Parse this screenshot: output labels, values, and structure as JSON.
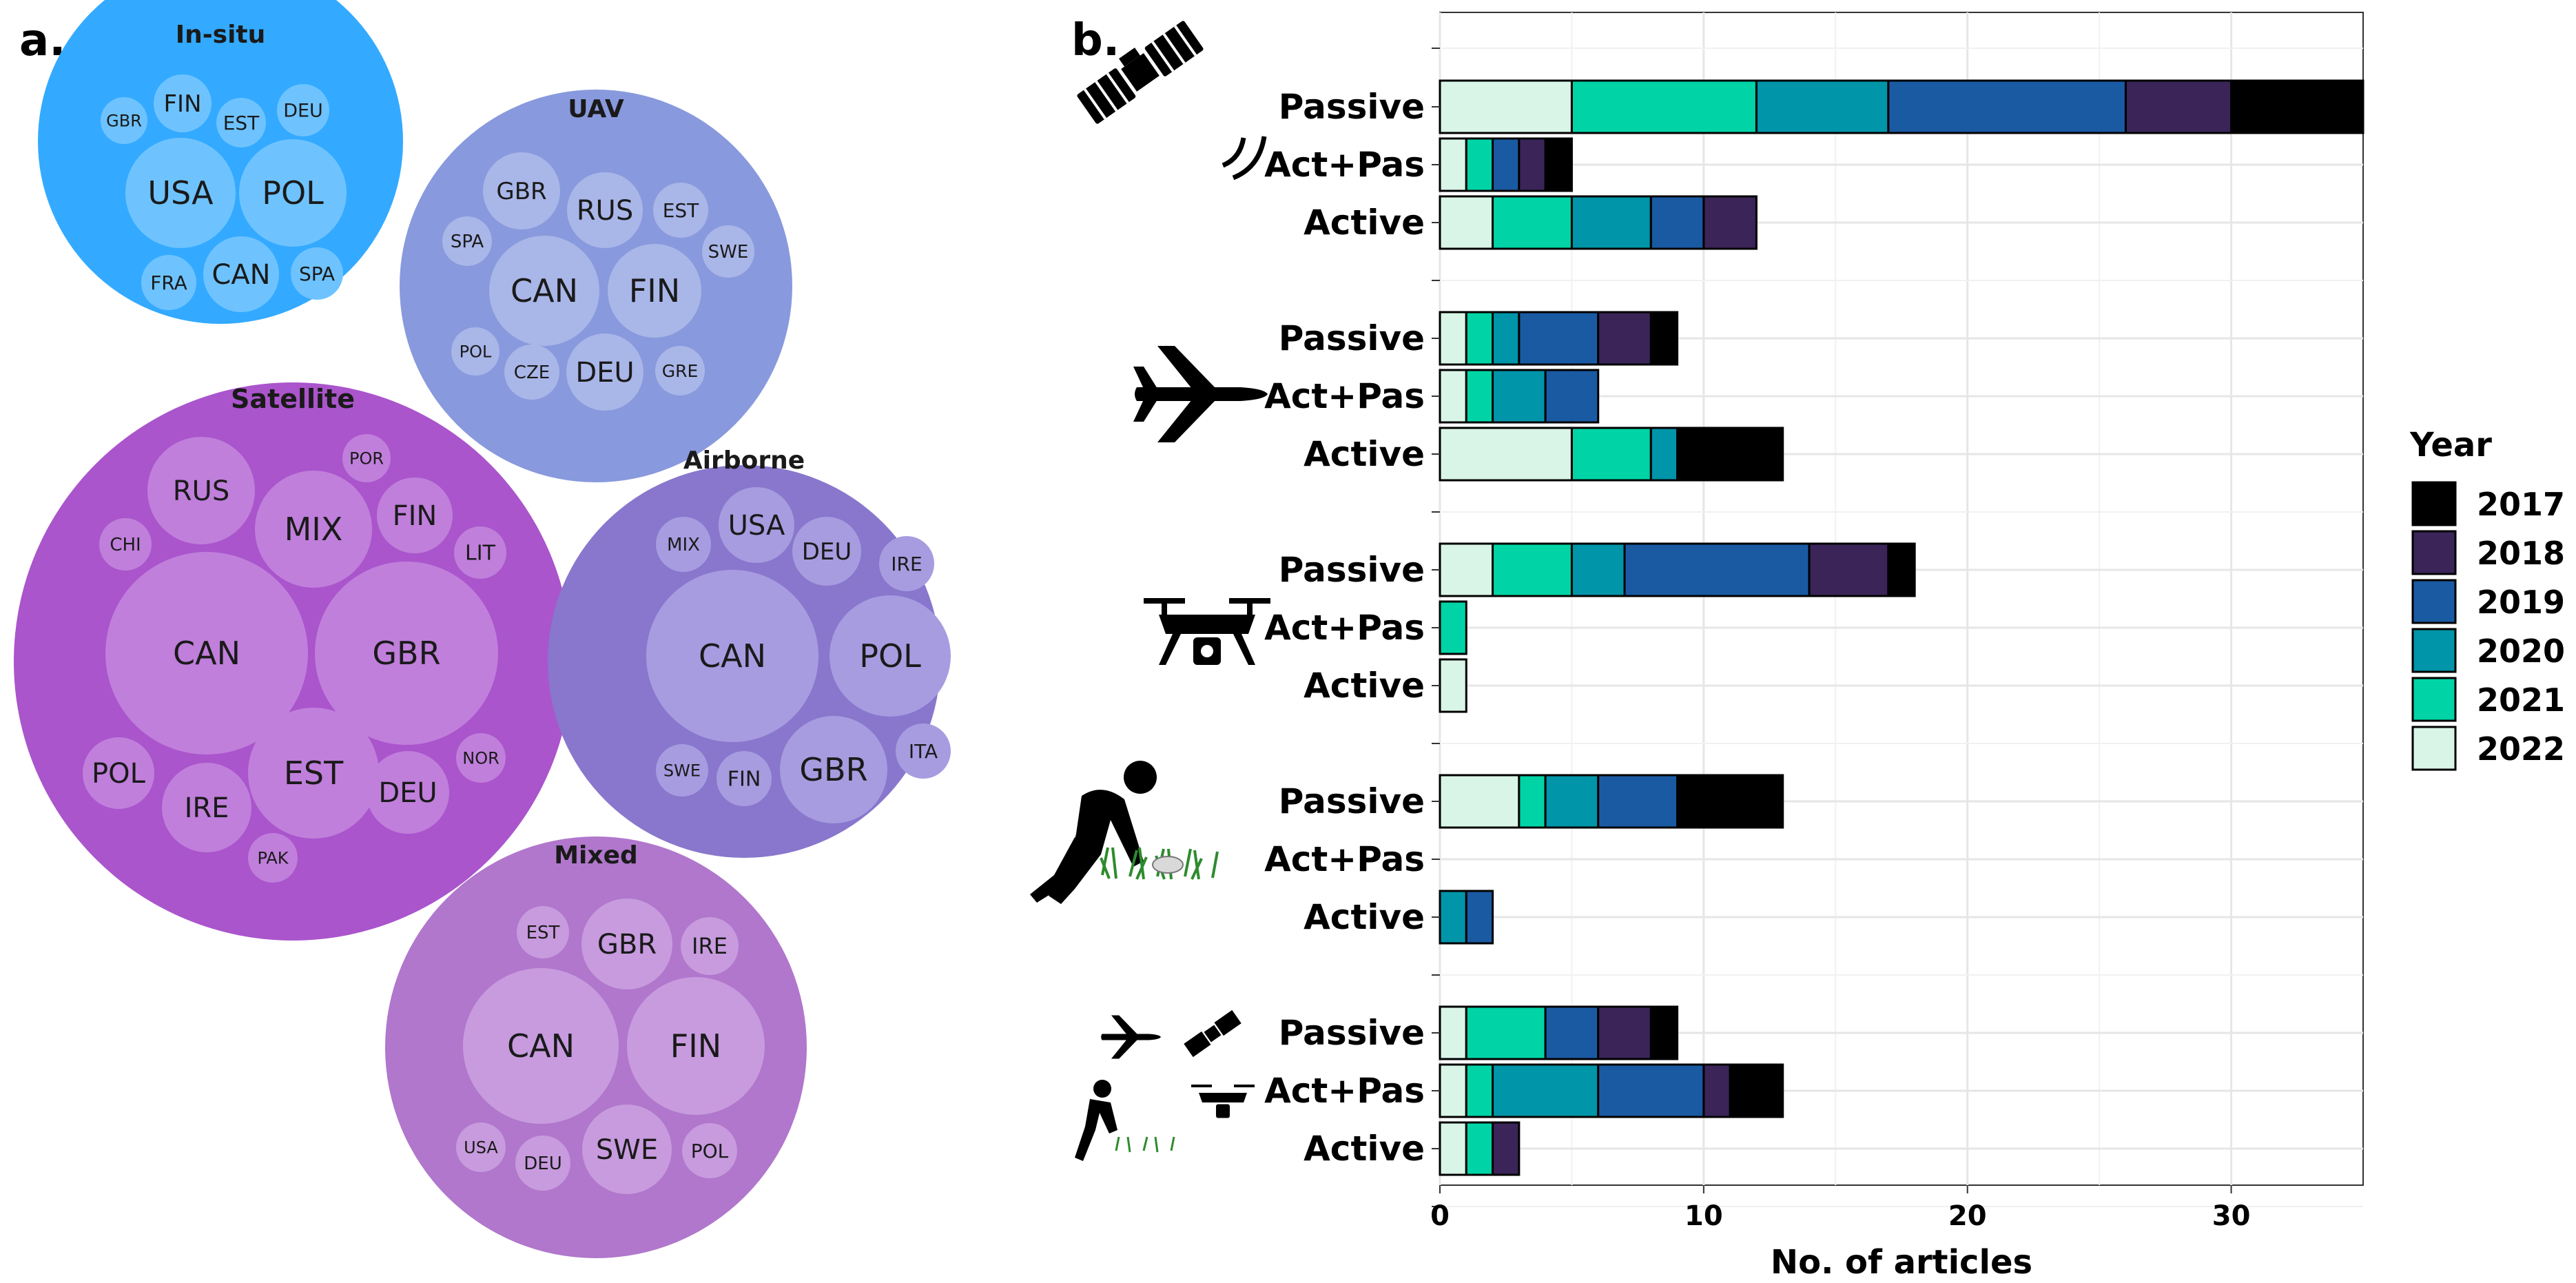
{
  "panel_a": {
    "label": "a.",
    "circles": [
      {
        "title": "In-situ",
        "color": "#33aaff",
        "bubble_color": "#6ec3ff",
        "countries": [
          "GBR",
          "FIN",
          "EST",
          "DEU",
          "USA",
          "POL",
          "FRA",
          "CAN",
          "SPA"
        ]
      },
      {
        "title": "UAV",
        "color": "#8899dd",
        "bubble_color": "#a9b6e8",
        "countries": [
          "GBR",
          "RUS",
          "EST",
          "SPA",
          "SWE",
          "CAN",
          "FIN",
          "POL",
          "CZE",
          "DEU",
          "GRE"
        ]
      },
      {
        "title": "Satellite",
        "color": "#aa55cc",
        "bubble_color": "#c07fdb",
        "countries": [
          "RUS",
          "POR",
          "MIX",
          "FIN",
          "CHI",
          "LIT",
          "CAN",
          "GBR",
          "NOR",
          "POL",
          "EST",
          "IRE",
          "DEU",
          "PAK"
        ]
      },
      {
        "title": "Airborne",
        "color": "#8877cc",
        "bubble_color": "#a79ce0",
        "countries": [
          "MIX",
          "USA",
          "DEU",
          "IRE",
          "CAN",
          "POL",
          "SWE",
          "FIN",
          "GBR",
          "ITA"
        ]
      },
      {
        "title": "Mixed",
        "color": "#b077cc",
        "bubble_color": "#c79bde",
        "countries": [
          "EST",
          "GBR",
          "IRE",
          "CAN",
          "FIN",
          "USA",
          "DEU",
          "SWE",
          "POL"
        ]
      }
    ]
  },
  "panel_b": {
    "label": "b.",
    "icons": [
      "satellite-icon",
      "airplane-icon",
      "drone-icon",
      "field-person-icon",
      "combined-platforms-icon"
    ]
  },
  "chart_data": {
    "type": "bar",
    "orientation": "horizontal",
    "stacked": true,
    "groups": [
      "Satellite",
      "Airborne",
      "UAV",
      "In-situ",
      "Mixed"
    ],
    "categories": [
      "Passive",
      "Act+Pas",
      "Active",
      "Passive",
      "Act+Pas",
      "Active",
      "Passive",
      "Act+Pas",
      "Active",
      "Passive",
      "Act+Pas",
      "Active",
      "Passive",
      "Act+Pas",
      "Active"
    ],
    "series": [
      {
        "name": "2022",
        "color": "#d9f5e7",
        "values": [
          5,
          1,
          2,
          1,
          1,
          5,
          2,
          0,
          1,
          3,
          0,
          0,
          1,
          1,
          1
        ]
      },
      {
        "name": "2021",
        "color": "#00d4a6",
        "values": [
          7,
          1,
          3,
          1,
          1,
          3,
          3,
          1,
          0,
          1,
          0,
          0,
          3,
          1,
          1
        ]
      },
      {
        "name": "2020",
        "color": "#0095a8",
        "values": [
          5,
          0,
          3,
          1,
          2,
          1,
          2,
          0,
          0,
          2,
          0,
          1,
          0,
          4,
          0
        ]
      },
      {
        "name": "2019",
        "color": "#1a5aa3",
        "values": [
          9,
          1,
          2,
          3,
          2,
          0,
          7,
          0,
          0,
          3,
          0,
          1,
          2,
          4,
          0
        ]
      },
      {
        "name": "2018",
        "color": "#3b2458",
        "values": [
          4,
          1,
          2,
          2,
          0,
          0,
          3,
          0,
          0,
          0,
          0,
          0,
          2,
          1,
          1
        ]
      },
      {
        "name": "2017",
        "color": "#000000",
        "values": [
          5,
          1,
          0,
          1,
          0,
          4,
          1,
          0,
          0,
          4,
          0,
          0,
          1,
          2,
          0
        ]
      }
    ],
    "xlabel": "No. of articles",
    "ylabel": "",
    "xlim": [
      0,
      35
    ],
    "xticks": [
      "0",
      "10",
      "20",
      "30"
    ],
    "grid": true,
    "legend": {
      "title": "Year",
      "position": "right",
      "entries": [
        "2017",
        "2018",
        "2019",
        "2020",
        "2021",
        "2022"
      ]
    }
  }
}
